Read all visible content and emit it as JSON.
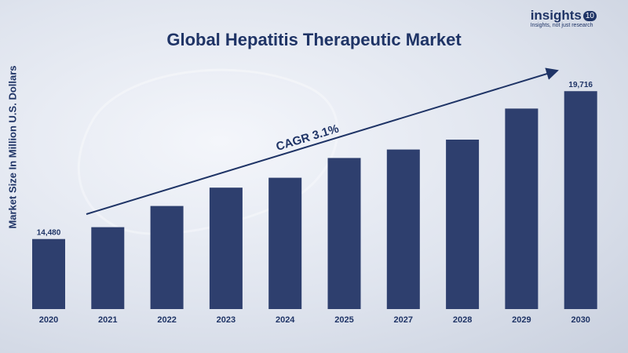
{
  "brand": {
    "name": "insights",
    "badge": "10",
    "tagline": "Insights, not just research"
  },
  "chart_data": {
    "type": "bar",
    "title": "Global Hepatitis Therapeutic Market",
    "xlabel": "",
    "ylabel": "Market Size In Million  U.S.  Dollars",
    "categories": [
      "2020",
      "2021",
      "2022",
      "2023",
      "2024",
      "2025",
      "2027",
      "2028",
      "2029",
      "2030"
    ],
    "values": [
      14480,
      14900,
      15650,
      16300,
      16650,
      17350,
      17650,
      18000,
      19100,
      19716
    ],
    "data_labels": {
      "2020": "14,480",
      "2030": "19,716"
    },
    "annotation": "CAGR 3.1%",
    "ylim": [
      12000,
      20500
    ],
    "grid": false,
    "bar_color": "#2e3f6e"
  }
}
